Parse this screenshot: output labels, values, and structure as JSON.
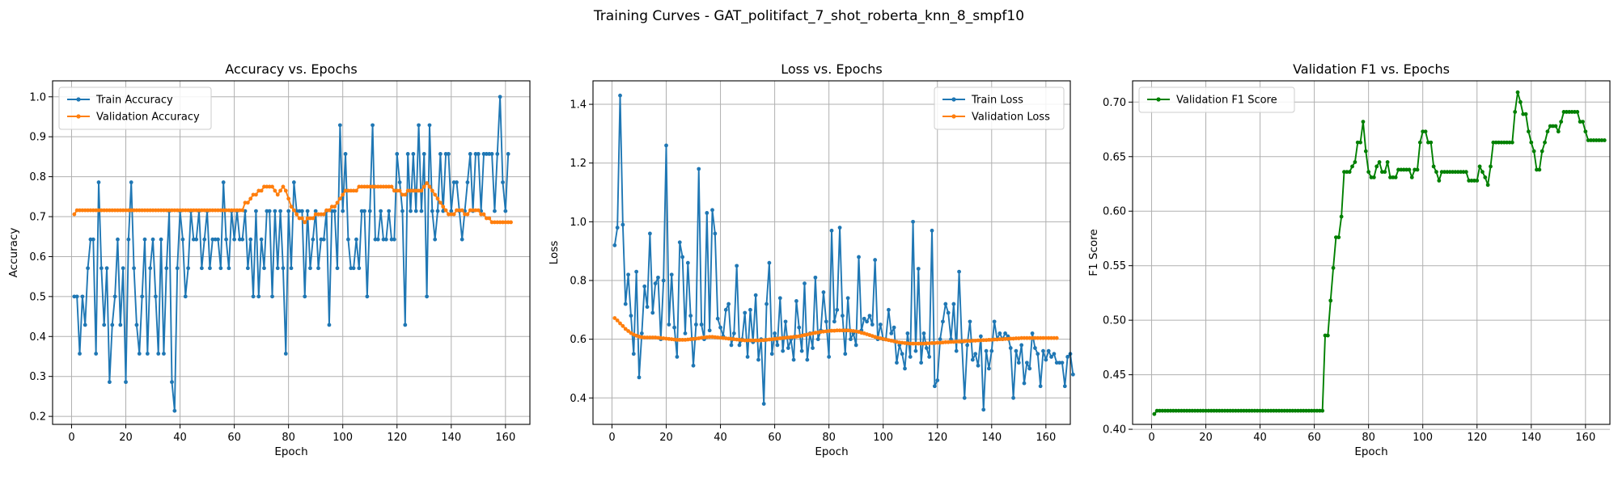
{
  "figure": {
    "suptitle": "Training Curves - GAT_politifact_7_shot_roberta_knn_8_smpf10"
  },
  "chart_data": [
    {
      "type": "line",
      "title": "Accuracy vs. Epochs",
      "xlabel": "Epoch",
      "ylabel": "Accuracy",
      "xlim": [
        -7,
        169
      ],
      "ylim": [
        0.18,
        1.04
      ],
      "xticks": [
        0,
        20,
        40,
        60,
        80,
        100,
        120,
        140,
        160
      ],
      "yticks": [
        0.2,
        0.3,
        0.4,
        0.5,
        0.6,
        0.7,
        0.8,
        0.9,
        1.0
      ],
      "ytick_labels": [
        "0.2",
        "0.3",
        "0.4",
        "0.5",
        "0.6",
        "0.7",
        "0.8",
        "0.9",
        "1.0"
      ],
      "grid": true,
      "legend": "upper-left",
      "series": [
        {
          "name": "Train Accuracy",
          "color": "#1f77b4",
          "x_start": 1,
          "values": [
            0.5,
            0.5,
            0.357,
            0.5,
            0.429,
            0.571,
            0.643,
            0.643,
            0.357,
            0.786,
            0.571,
            0.429,
            0.571,
            0.286,
            0.429,
            0.5,
            0.643,
            0.429,
            0.571,
            0.286,
            0.643,
            0.786,
            0.571,
            0.429,
            0.357,
            0.5,
            0.643,
            0.357,
            0.571,
            0.643,
            0.5,
            0.357,
            0.643,
            0.357,
            0.571,
            0.714,
            0.286,
            0.214,
            0.571,
            0.714,
            0.643,
            0.5,
            0.571,
            0.714,
            0.643,
            0.643,
            0.714,
            0.571,
            0.643,
            0.714,
            0.571,
            0.643,
            0.643,
            0.643,
            0.571,
            0.786,
            0.643,
            0.571,
            0.714,
            0.643,
            0.714,
            0.643,
            0.643,
            0.714,
            0.571,
            0.643,
            0.5,
            0.714,
            0.5,
            0.643,
            0.571,
            0.714,
            0.714,
            0.5,
            0.714,
            0.571,
            0.714,
            0.571,
            0.357,
            0.714,
            0.571,
            0.786,
            0.714,
            0.714,
            0.714,
            0.5,
            0.714,
            0.571,
            0.643,
            0.714,
            0.571,
            0.643,
            0.643,
            0.714,
            0.429,
            0.714,
            0.714,
            0.571,
            0.929,
            0.714,
            0.857,
            0.643,
            0.571,
            0.571,
            0.643,
            0.571,
            0.714,
            0.714,
            0.5,
            0.714,
            0.929,
            0.643,
            0.643,
            0.714,
            0.643,
            0.643,
            0.714,
            0.643,
            0.643,
            0.857,
            0.786,
            0.714,
            0.429,
            0.857,
            0.714,
            0.857,
            0.714,
            0.929,
            0.714,
            0.857,
            0.5,
            0.929,
            0.714,
            0.643,
            0.714,
            0.857,
            0.714,
            0.857,
            0.857,
            0.714,
            0.786,
            0.786,
            0.714,
            0.643,
            0.714,
            0.786,
            0.857,
            0.714,
            0.857,
            0.857,
            0.714,
            0.857,
            0.857,
            0.857,
            0.857,
            0.714,
            0.857,
            1.0,
            0.786,
            0.714,
            0.857
          ]
        },
        {
          "name": "Validation Accuracy",
          "color": "#ff7f0e",
          "x_start": 1,
          "values": [
            0.706,
            0.716,
            0.716,
            0.716,
            0.716,
            0.716,
            0.716,
            0.716,
            0.716,
            0.716,
            0.716,
            0.716,
            0.716,
            0.716,
            0.716,
            0.716,
            0.716,
            0.716,
            0.716,
            0.716,
            0.716,
            0.716,
            0.716,
            0.716,
            0.716,
            0.716,
            0.716,
            0.716,
            0.716,
            0.716,
            0.716,
            0.716,
            0.716,
            0.716,
            0.716,
            0.716,
            0.716,
            0.716,
            0.716,
            0.716,
            0.716,
            0.716,
            0.716,
            0.716,
            0.716,
            0.716,
            0.716,
            0.716,
            0.716,
            0.716,
            0.716,
            0.716,
            0.716,
            0.716,
            0.716,
            0.716,
            0.716,
            0.716,
            0.716,
            0.716,
            0.716,
            0.716,
            0.716,
            0.735,
            0.735,
            0.745,
            0.755,
            0.755,
            0.765,
            0.765,
            0.775,
            0.775,
            0.775,
            0.775,
            0.765,
            0.755,
            0.765,
            0.775,
            0.765,
            0.745,
            0.725,
            0.716,
            0.706,
            0.696,
            0.696,
            0.686,
            0.696,
            0.696,
            0.696,
            0.706,
            0.706,
            0.706,
            0.706,
            0.716,
            0.716,
            0.725,
            0.725,
            0.735,
            0.745,
            0.755,
            0.765,
            0.765,
            0.765,
            0.765,
            0.765,
            0.775,
            0.775,
            0.775,
            0.775,
            0.775,
            0.775,
            0.775,
            0.775,
            0.775,
            0.775,
            0.775,
            0.775,
            0.775,
            0.765,
            0.765,
            0.765,
            0.755,
            0.755,
            0.765,
            0.765,
            0.765,
            0.765,
            0.765,
            0.765,
            0.775,
            0.784,
            0.775,
            0.765,
            0.755,
            0.745,
            0.735,
            0.725,
            0.716,
            0.706,
            0.706,
            0.706,
            0.716,
            0.716,
            0.716,
            0.706,
            0.706,
            0.716,
            0.716,
            0.716,
            0.716,
            0.706,
            0.706,
            0.696,
            0.696,
            0.686,
            0.686,
            0.686,
            0.686,
            0.686,
            0.686,
            0.686,
            0.686
          ]
        }
      ]
    },
    {
      "type": "line",
      "title": "Loss vs. Epochs",
      "xlabel": "Epoch",
      "ylabel": "Loss",
      "xlim": [
        -7,
        169
      ],
      "ylim": [
        0.31,
        1.48
      ],
      "xticks": [
        0,
        20,
        40,
        60,
        80,
        100,
        120,
        140,
        160
      ],
      "yticks": [
        0.4,
        0.6,
        0.8,
        1.0,
        1.2,
        1.4
      ],
      "ytick_labels": [
        "0.4",
        "0.6",
        "0.8",
        "1.0",
        "1.2",
        "1.4"
      ],
      "grid": true,
      "legend": "upper-right",
      "series": [
        {
          "name": "Train Loss",
          "color": "#1f77b4",
          "x_start": 1,
          "values": [
            0.92,
            0.98,
            1.43,
            0.99,
            0.72,
            0.82,
            0.68,
            0.55,
            0.83,
            0.47,
            0.62,
            0.78,
            0.71,
            0.96,
            0.69,
            0.79,
            0.81,
            0.6,
            0.8,
            1.26,
            0.65,
            0.82,
            0.64,
            0.54,
            0.93,
            0.88,
            0.62,
            0.86,
            0.68,
            0.51,
            0.65,
            1.18,
            0.65,
            0.6,
            1.03,
            0.63,
            1.04,
            0.96,
            0.67,
            0.64,
            0.61,
            0.7,
            0.72,
            0.58,
            0.62,
            0.85,
            0.58,
            0.6,
            0.69,
            0.54,
            0.7,
            0.59,
            0.75,
            0.53,
            0.6,
            0.38,
            0.72,
            0.86,
            0.55,
            0.62,
            0.58,
            0.74,
            0.56,
            0.66,
            0.57,
            0.6,
            0.53,
            0.73,
            0.64,
            0.56,
            0.79,
            0.53,
            0.62,
            0.57,
            0.81,
            0.6,
            0.63,
            0.76,
            0.66,
            0.54,
            0.97,
            0.66,
            0.7,
            0.98,
            0.68,
            0.55,
            0.74,
            0.6,
            0.62,
            0.58,
            0.88,
            0.63,
            0.67,
            0.66,
            0.68,
            0.65,
            0.87,
            0.6,
            0.65,
            0.6,
            0.6,
            0.7,
            0.62,
            0.64,
            0.52,
            0.58,
            0.55,
            0.5,
            0.62,
            0.54,
            1.0,
            0.56,
            0.84,
            0.52,
            0.62,
            0.57,
            0.54,
            0.97,
            0.44,
            0.46,
            0.6,
            0.66,
            0.72,
            0.69,
            0.6,
            0.72,
            0.56,
            0.83,
            0.59,
            0.4,
            0.58,
            0.66,
            0.53,
            0.55,
            0.51,
            0.61,
            0.36,
            0.56,
            0.5,
            0.56,
            0.66,
            0.6,
            0.62,
            0.6,
            0.62,
            0.61,
            0.57,
            0.4,
            0.56,
            0.52,
            0.58,
            0.45,
            0.52,
            0.5,
            0.62,
            0.57,
            0.55,
            0.44,
            0.56,
            0.53,
            0.56,
            0.54,
            0.55,
            0.52,
            0.52,
            0.52,
            0.44,
            0.54,
            0.55,
            0.48
          ]
        },
        {
          "name": "Validation Loss",
          "color": "#ff7f0e",
          "x_start": 1,
          "values": [
            0.672,
            0.664,
            0.654,
            0.645,
            0.635,
            0.628,
            0.621,
            0.616,
            0.612,
            0.609,
            0.607,
            0.606,
            0.606,
            0.606,
            0.606,
            0.606,
            0.605,
            0.604,
            0.603,
            0.602,
            0.601,
            0.6,
            0.599,
            0.598,
            0.598,
            0.598,
            0.598,
            0.599,
            0.6,
            0.601,
            0.602,
            0.603,
            0.605,
            0.606,
            0.607,
            0.608,
            0.608,
            0.607,
            0.606,
            0.605,
            0.604,
            0.603,
            0.602,
            0.601,
            0.6,
            0.599,
            0.598,
            0.597,
            0.596,
            0.596,
            0.596,
            0.596,
            0.596,
            0.596,
            0.596,
            0.597,
            0.598,
            0.599,
            0.6,
            0.601,
            0.602,
            0.603,
            0.604,
            0.605,
            0.606,
            0.607,
            0.608,
            0.609,
            0.61,
            0.612,
            0.614,
            0.616,
            0.618,
            0.62,
            0.622,
            0.623,
            0.625,
            0.626,
            0.627,
            0.628,
            0.629,
            0.629,
            0.63,
            0.63,
            0.63,
            0.63,
            0.63,
            0.629,
            0.628,
            0.627,
            0.625,
            0.622,
            0.62,
            0.617,
            0.614,
            0.611,
            0.608,
            0.605,
            0.603,
            0.601,
            0.599,
            0.597,
            0.595,
            0.593,
            0.591,
            0.589,
            0.588,
            0.587,
            0.586,
            0.585,
            0.585,
            0.585,
            0.585,
            0.585,
            0.585,
            0.586,
            0.586,
            0.587,
            0.587,
            0.588,
            0.588,
            0.589,
            0.59,
            0.59,
            0.591,
            0.591,
            0.592,
            0.592,
            0.593,
            0.593,
            0.594,
            0.594,
            0.595,
            0.595,
            0.596,
            0.596,
            0.597,
            0.597,
            0.598,
            0.598,
            0.599,
            0.599,
            0.6,
            0.6,
            0.601,
            0.601,
            0.602,
            0.602,
            0.603,
            0.603,
            0.604,
            0.604,
            0.604,
            0.604,
            0.604,
            0.604,
            0.604,
            0.604,
            0.604,
            0.604,
            0.604,
            0.604,
            0.604,
            0.604
          ]
        }
      ]
    },
    {
      "type": "line",
      "title": "Validation F1 vs. Epochs",
      "xlabel": "Epoch",
      "ylabel": "F1 Score",
      "xlim": [
        -7,
        169
      ],
      "ylim": [
        0.4045,
        0.7195
      ],
      "xticks": [
        0,
        20,
        40,
        60,
        80,
        100,
        120,
        140,
        160
      ],
      "yticks": [
        0.4,
        0.45,
        0.5,
        0.55,
        0.6,
        0.65,
        0.7
      ],
      "ytick_labels": [
        "0.40",
        "0.45",
        "0.50",
        "0.55",
        "0.60",
        "0.65",
        "0.70"
      ],
      "grid": true,
      "legend": "upper-left",
      "series": [
        {
          "name": "Validation F1 Score",
          "color": "#008000",
          "x_start": 1,
          "values": [
            0.414,
            0.417,
            0.417,
            0.417,
            0.417,
            0.417,
            0.417,
            0.417,
            0.417,
            0.417,
            0.417,
            0.417,
            0.417,
            0.417,
            0.417,
            0.417,
            0.417,
            0.417,
            0.417,
            0.417,
            0.417,
            0.417,
            0.417,
            0.417,
            0.417,
            0.417,
            0.417,
            0.417,
            0.417,
            0.417,
            0.417,
            0.417,
            0.417,
            0.417,
            0.417,
            0.417,
            0.417,
            0.417,
            0.417,
            0.417,
            0.417,
            0.417,
            0.417,
            0.417,
            0.417,
            0.417,
            0.417,
            0.417,
            0.417,
            0.417,
            0.417,
            0.417,
            0.417,
            0.417,
            0.417,
            0.417,
            0.417,
            0.417,
            0.417,
            0.417,
            0.417,
            0.417,
            0.417,
            0.486,
            0.486,
            0.518,
            0.548,
            0.576,
            0.576,
            0.595,
            0.636,
            0.636,
            0.636,
            0.641,
            0.645,
            0.663,
            0.663,
            0.682,
            0.655,
            0.636,
            0.631,
            0.631,
            0.641,
            0.645,
            0.636,
            0.636,
            0.645,
            0.631,
            0.631,
            0.631,
            0.638,
            0.638,
            0.638,
            0.638,
            0.638,
            0.631,
            0.638,
            0.638,
            0.663,
            0.673,
            0.673,
            0.663,
            0.663,
            0.641,
            0.636,
            0.628,
            0.636,
            0.636,
            0.636,
            0.636,
            0.636,
            0.636,
            0.636,
            0.636,
            0.636,
            0.636,
            0.628,
            0.628,
            0.628,
            0.628,
            0.641,
            0.636,
            0.631,
            0.624,
            0.641,
            0.663,
            0.663,
            0.663,
            0.663,
            0.663,
            0.663,
            0.663,
            0.663,
            0.691,
            0.709,
            0.7,
            0.689,
            0.689,
            0.673,
            0.663,
            0.655,
            0.638,
            0.638,
            0.655,
            0.663,
            0.673,
            0.678,
            0.678,
            0.678,
            0.673,
            0.682,
            0.691,
            0.691,
            0.691,
            0.691,
            0.691,
            0.691,
            0.682,
            0.682,
            0.673,
            0.665,
            0.665,
            0.665,
            0.665,
            0.665,
            0.665,
            0.665
          ]
        }
      ]
    }
  ]
}
